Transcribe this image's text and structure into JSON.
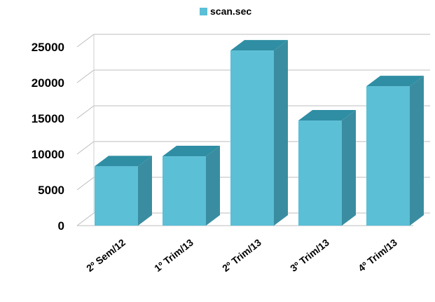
{
  "chart_data": {
    "type": "bar",
    "title": "",
    "xlabel": "",
    "ylabel": "",
    "legend": {
      "position": "top",
      "entries": [
        "scan.sec"
      ]
    },
    "categories": [
      "2º Sem/12",
      "1º Trim/13",
      "2º Trim/13",
      "3º Trim/13",
      "4º Trim/13"
    ],
    "series": [
      {
        "name": "scan.sec",
        "values": [
          8300,
          9700,
          24500,
          14700,
          19500
        ]
      }
    ],
    "ylim": [
      0,
      25000
    ],
    "yticks": [
      0,
      5000,
      10000,
      15000,
      20000,
      25000
    ],
    "grid": true,
    "style": "3d",
    "colors": {
      "front": "#5bbfd6",
      "side": "#3a8da0",
      "top": "#2f8ea3"
    }
  }
}
